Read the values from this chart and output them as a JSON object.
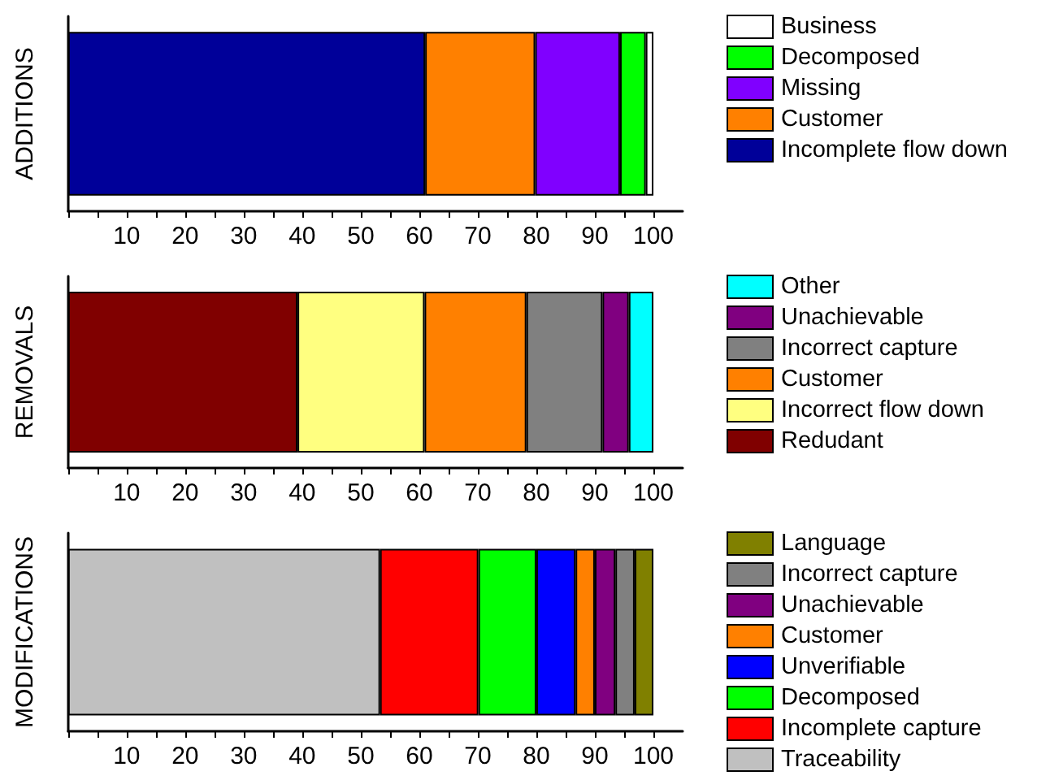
{
  "chart_data": [
    {
      "type": "bar",
      "orientation": "horizontal",
      "stacked": true,
      "ylabel": "ADDITIONS",
      "categories": [
        null
      ],
      "xlim": [
        0,
        105
      ],
      "xticks": [
        {
          "value": 0,
          "label": null
        },
        {
          "value": 5,
          "label": null
        },
        10,
        {
          "value": 15,
          "label": null
        },
        20,
        {
          "value": 25,
          "label": null
        },
        30,
        {
          "value": 35,
          "label": null
        },
        40,
        {
          "value": 45,
          "label": null
        },
        50,
        {
          "value": 55,
          "label": null
        },
        60,
        {
          "value": 65,
          "label": null
        },
        70,
        {
          "value": 75,
          "label": null
        },
        80,
        {
          "value": 85,
          "label": null
        },
        90,
        {
          "value": 95,
          "label": null
        },
        100
      ],
      "grid": false,
      "legend": "right",
      "series": [
        {
          "name": "Incomplete flow down",
          "color": "#000099",
          "values": [
            61
          ]
        },
        {
          "name": "Customer",
          "color": "#ff8000",
          "values": [
            18.8
          ]
        },
        {
          "name": "Missing",
          "color": "#8000ff",
          "values": [
            14.5
          ]
        },
        {
          "name": "Decomposed",
          "color": "#00ff00",
          "values": [
            4.4
          ]
        },
        {
          "name": "Business",
          "color": "#ffffff",
          "values": [
            1.3
          ]
        }
      ]
    },
    {
      "type": "bar",
      "orientation": "horizontal",
      "stacked": true,
      "ylabel": "REMOVALS",
      "categories": [
        null
      ],
      "xlim": [
        0,
        105
      ],
      "xticks": [
        {
          "value": 0,
          "label": null
        },
        {
          "value": 5,
          "label": null
        },
        10,
        {
          "value": 15,
          "label": null
        },
        20,
        {
          "value": 25,
          "label": null
        },
        30,
        {
          "value": 35,
          "label": null
        },
        40,
        {
          "value": 45,
          "label": null
        },
        50,
        {
          "value": 55,
          "label": null
        },
        60,
        {
          "value": 65,
          "label": null
        },
        70,
        {
          "value": 75,
          "label": null
        },
        80,
        {
          "value": 85,
          "label": null
        },
        90,
        {
          "value": 95,
          "label": null
        },
        100
      ],
      "grid": false,
      "legend": "right",
      "series": [
        {
          "name": "Redudant",
          "color": "#800000",
          "values": [
            39.2
          ]
        },
        {
          "name": "Incorrect flow down",
          "color": "#ffff80",
          "values": [
            21.7
          ]
        },
        {
          "name": "Customer",
          "color": "#ff8000",
          "values": [
            17.4
          ]
        },
        {
          "name": "Incorrect capture",
          "color": "#808080",
          "values": [
            13
          ]
        },
        {
          "name": "Unachievable",
          "color": "#800080",
          "values": [
            4.5
          ]
        },
        {
          "name": "Other",
          "color": "#00ffff",
          "values": [
            4.2
          ]
        }
      ]
    },
    {
      "type": "bar",
      "orientation": "horizontal",
      "stacked": true,
      "ylabel": "MODIFICATIONS",
      "categories": [
        null
      ],
      "xlim": [
        0,
        105
      ],
      "xticks": [
        {
          "value": 0,
          "label": null
        },
        {
          "value": 5,
          "label": null
        },
        10,
        {
          "value": 15,
          "label": null
        },
        20,
        {
          "value": 25,
          "label": null
        },
        30,
        {
          "value": 35,
          "label": null
        },
        40,
        {
          "value": 45,
          "label": null
        },
        50,
        {
          "value": 55,
          "label": null
        },
        60,
        {
          "value": 65,
          "label": null
        },
        70,
        {
          "value": 75,
          "label": null
        },
        80,
        {
          "value": 85,
          "label": null
        },
        90,
        {
          "value": 95,
          "label": null
        },
        100
      ],
      "grid": false,
      "legend": "right",
      "series": [
        {
          "name": "Traceability",
          "color": "#c0c0c0",
          "values": [
            53.3
          ]
        },
        {
          "name": "Incomplete capture",
          "color": "#ff0000",
          "values": [
            16.8
          ]
        },
        {
          "name": "Decomposed",
          "color": "#00ff00",
          "values": [
            9.9
          ]
        },
        {
          "name": "Unverifiable",
          "color": "#0000ff",
          "values": [
            6.7
          ]
        },
        {
          "name": "Customer",
          "color": "#ff8000",
          "values": [
            3.3
          ]
        },
        {
          "name": "Unachievable",
          "color": "#800080",
          "values": [
            3.5
          ]
        },
        {
          "name": "Incorrect capture",
          "color": "#808080",
          "values": [
            3.3
          ]
        },
        {
          "name": "Language",
          "color": "#808000",
          "values": [
            3.2
          ]
        }
      ]
    }
  ]
}
